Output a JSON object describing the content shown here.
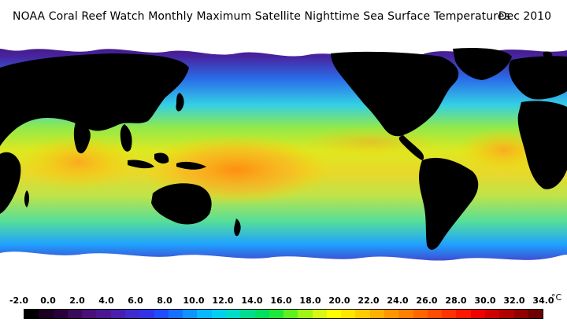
{
  "title": {
    "text": "NOAA Coral Reef Watch Monthly Maximum Satellite Nighttime Sea Surface Temperatures",
    "date": "Dec 2010"
  },
  "legend": {
    "labels": [
      "-2.0",
      "0.0",
      "2.0",
      "4.0",
      "6.0",
      "8.0",
      "10.0",
      "12.0",
      "14.0",
      "16.0",
      "18.0",
      "20.0",
      "22.0",
      "24.0",
      "26.0",
      "28.0",
      "30.0",
      "32.0",
      "34.0"
    ],
    "unit": "°C",
    "colors": [
      "#000000",
      "#1a0020",
      "#28003a",
      "#3a0a5a",
      "#4a0f78",
      "#4b1690",
      "#4a1eae",
      "#3f2ccb",
      "#3232e6",
      "#1f4cff",
      "#1670ff",
      "#0d94ff",
      "#05b8ff",
      "#00d0f0",
      "#00dcc8",
      "#00dd90",
      "#00e060",
      "#20e83a",
      "#60f020",
      "#a0f418",
      "#d6f814",
      "#ffff00",
      "#ffe600",
      "#ffcc00",
      "#ffb000",
      "#ff9600",
      "#ff8000",
      "#ff6600",
      "#ff4c00",
      "#ff3200",
      "#ff1800",
      "#f00000",
      "#d00000",
      "#b00000",
      "#900000",
      "#700000"
    ]
  },
  "colors": {
    "land": "#000000",
    "ice": "#ffffff",
    "cold": "#5a2690",
    "cool": "#2fd7e6",
    "mild": "#8ee84a",
    "warm": "#e8e80a",
    "hot": "#f8a020"
  }
}
